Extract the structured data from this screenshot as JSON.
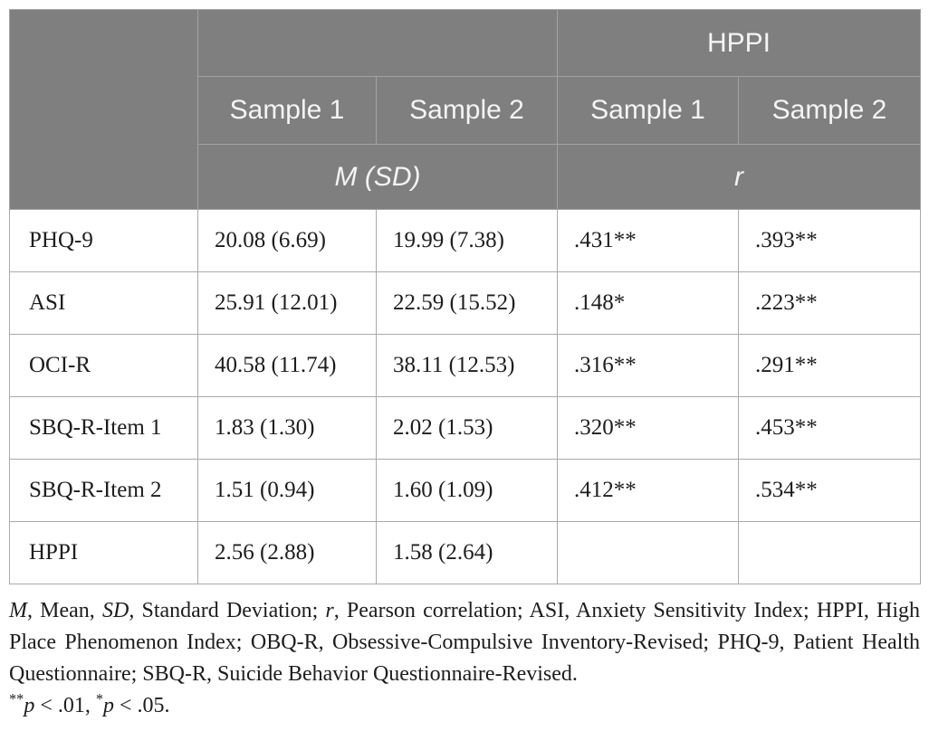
{
  "palette": {
    "header_bg": "#7f7f7f",
    "header_text": "#f4f4f4",
    "body_text": "#1d1d1d",
    "grid_line": "#aaaaaa",
    "page_bg": "#ffffff"
  },
  "table": {
    "header": {
      "group_label": "HPPI",
      "sample_cols": [
        "Sample 1",
        "Sample 2",
        "Sample 1",
        "Sample 2"
      ],
      "measure_mean_sd": [
        {
          "t": "M (SD)",
          "i": true
        }
      ],
      "measure_r": [
        {
          "t": "r",
          "i": true
        }
      ]
    },
    "rows": [
      {
        "label": "PHQ-9",
        "s1": "20.08 (6.69)",
        "s2": "19.99 (7.38)",
        "r1": ".431**",
        "r2": ".393**"
      },
      {
        "label": "ASI",
        "s1": "25.91 (12.01)",
        "s2": "22.59 (15.52)",
        "r1": ".148*",
        "r2": ".223**"
      },
      {
        "label": "OCI-R",
        "s1": "40.58 (11.74)",
        "s2": "38.11 (12.53)",
        "r1": ".316**",
        "r2": ".291**"
      },
      {
        "label": "SBQ-R-Item 1",
        "s1": "1.83 (1.30)",
        "s2": "2.02 (1.53)",
        "r1": ".320**",
        "r2": ".453**"
      },
      {
        "label": "SBQ-R-Item 2",
        "s1": "1.51 (0.94)",
        "s2": "1.60 (1.09)",
        "r1": ".412**",
        "r2": ".534**"
      },
      {
        "label": "HPPI",
        "s1": "2.56 (2.88)",
        "s2": "1.58 (2.64)",
        "r1": "",
        "r2": ""
      }
    ]
  },
  "footnote": {
    "abbreviations": [
      {
        "t": "M",
        "i": true
      },
      {
        "t": ", Mean, "
      },
      {
        "t": "SD",
        "i": true
      },
      {
        "t": ", Standard Deviation; "
      },
      {
        "t": "r",
        "i": true
      },
      {
        "t": ", Pearson correlation; ASI, Anxiety Sensitivity Index; HPPI, High Place Phenomenon Index; OBQ-R, Obsessive-Compulsive Inventory-Revised; PHQ-9, Patient Health Questionnaire; SBQ-R, Suicide Behavior Questionnaire-Revised."
      }
    ],
    "significance": [
      {
        "t": "**",
        "sup": true
      },
      {
        "t": "p",
        "i": true
      },
      {
        "t": " < .01, "
      },
      {
        "t": "*",
        "sup": true
      },
      {
        "t": "p",
        "i": true
      },
      {
        "t": " < .05."
      }
    ]
  }
}
